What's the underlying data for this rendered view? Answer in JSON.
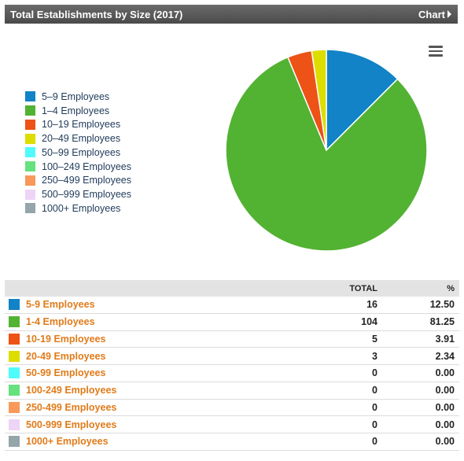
{
  "header": {
    "title": "Total Establishments by Size (2017)",
    "chart_link": "Chart"
  },
  "chart_data": {
    "type": "pie",
    "title": "",
    "legend_position": "left",
    "categories": [
      "5–9 Employees",
      "1–4 Employees",
      "10–19 Employees",
      "20–49 Employees",
      "50–99 Employees",
      "100–249 Employees",
      "250–499 Employees",
      "500–999 Employees",
      "1000+ Employees"
    ],
    "values": [
      16,
      104,
      5,
      3,
      0,
      0,
      0,
      0,
      0
    ],
    "colors": [
      "#1183c6",
      "#52b232",
      "#ed5216",
      "#dddd00",
      "#4ffcfb",
      "#65e17e",
      "#f8985b",
      "#eed4f6",
      "#95a5aa"
    ]
  },
  "table": {
    "columns": {
      "label": "",
      "total": "TOTAL",
      "pct": "%"
    },
    "rows": [
      {
        "label": "5-9 Employees",
        "total": "16",
        "pct": "12.50",
        "color": "#1183c6"
      },
      {
        "label": "1-4 Employees",
        "total": "104",
        "pct": "81.25",
        "color": "#52b232"
      },
      {
        "label": "10-19 Employees",
        "total": "5",
        "pct": "3.91",
        "color": "#ed5216"
      },
      {
        "label": "20-49 Employees",
        "total": "3",
        "pct": "2.34",
        "color": "#dddd00"
      },
      {
        "label": "50-99 Employees",
        "total": "0",
        "pct": "0.00",
        "color": "#4ffcfb"
      },
      {
        "label": "100-249 Employees",
        "total": "0",
        "pct": "0.00",
        "color": "#65e17e"
      },
      {
        "label": "250-499 Employees",
        "total": "0",
        "pct": "0.00",
        "color": "#f8985b"
      },
      {
        "label": "500-999 Employees",
        "total": "0",
        "pct": "0.00",
        "color": "#eed4f6"
      },
      {
        "label": "1000+ Employees",
        "total": "0",
        "pct": "0.00",
        "color": "#95a5aa"
      }
    ]
  },
  "menu_icon": "hamburger-menu-icon"
}
